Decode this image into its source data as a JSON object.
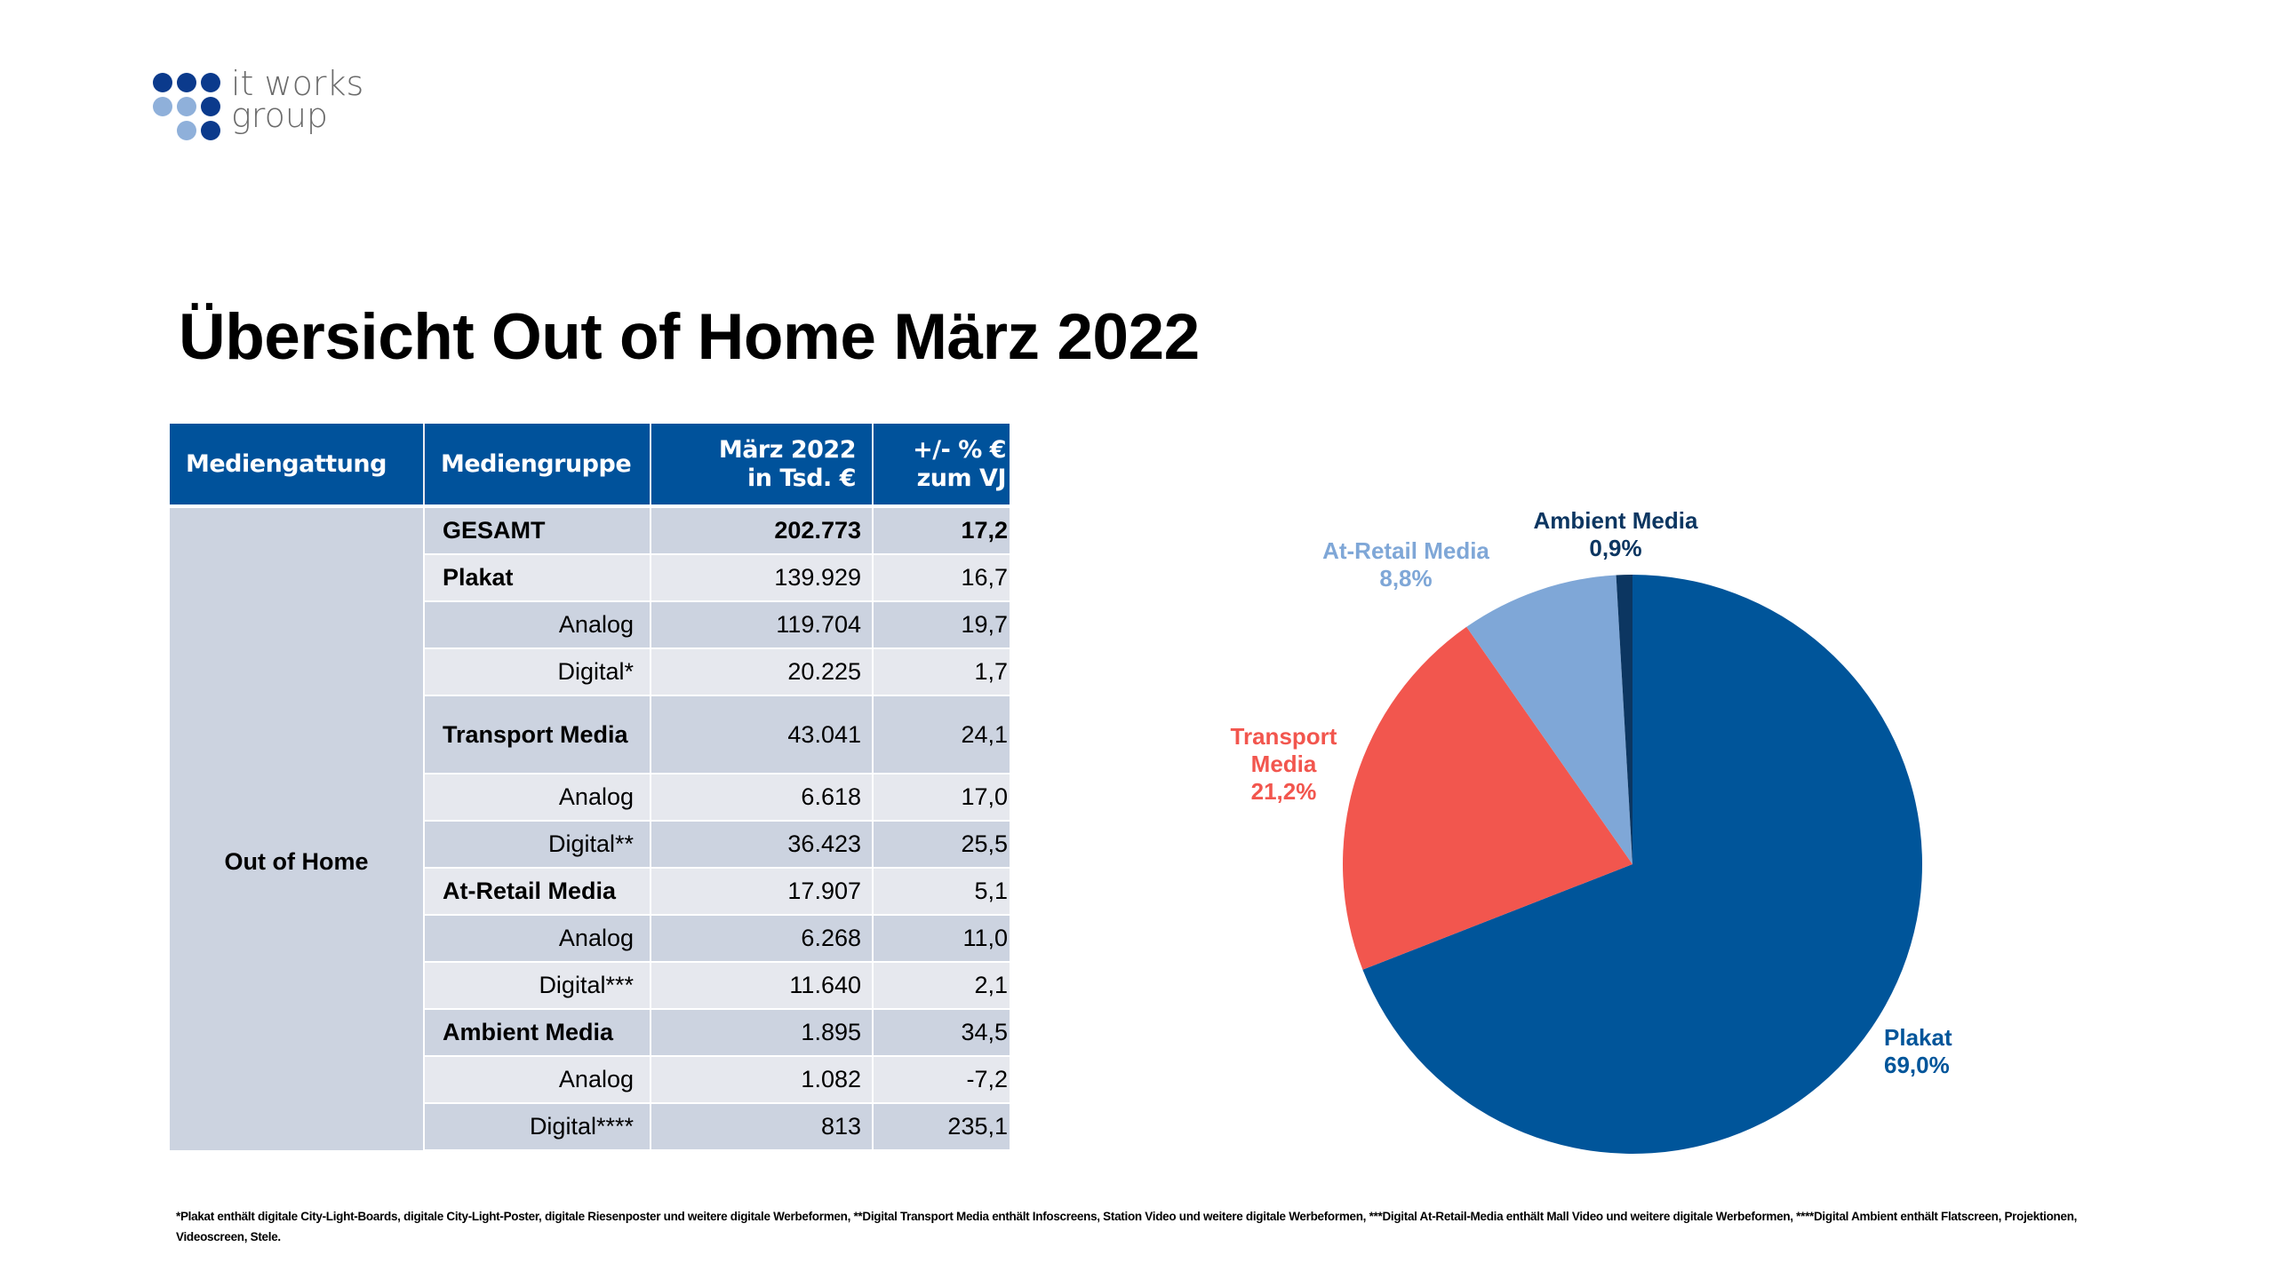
{
  "logo": {
    "line1": "it works",
    "line2": "group"
  },
  "title": "Übersicht Out of Home März 2022",
  "table": {
    "headers": [
      "Mediengattung",
      "Mediengruppe",
      "März 2022",
      "in Tsd. €",
      "+/- % €",
      "zum VJ"
    ],
    "group": "Out of Home",
    "rows": [
      {
        "name": "GESAMT",
        "value": "202.773",
        "change": "17,2"
      },
      {
        "name": "Plakat",
        "value": "139.929",
        "change": "16,7"
      },
      {
        "name": "Analog",
        "value": "119.704",
        "change": "19,7"
      },
      {
        "name": "Digital*",
        "value": "20.225",
        "change": "1,7"
      },
      {
        "name": "Transport Media",
        "value": "43.041",
        "change": "24,1"
      },
      {
        "name": "Analog",
        "value": "6.618",
        "change": "17,0"
      },
      {
        "name": "Digital**",
        "value": "36.423",
        "change": "25,5"
      },
      {
        "name": "At-Retail Media",
        "value": "17.907",
        "change": "5,1"
      },
      {
        "name": "Analog",
        "value": "6.268",
        "change": "11,0"
      },
      {
        "name": "Digital***",
        "value": "11.640",
        "change": "2,1"
      },
      {
        "name": "Ambient Media",
        "value": "1.895",
        "change": "34,5"
      },
      {
        "name": "Analog",
        "value": "1.082",
        "change": "-7,2"
      },
      {
        "name": "Digital****",
        "value": "813",
        "change": "235,1"
      }
    ]
  },
  "chart_data": {
    "type": "pie",
    "title": "",
    "start": "top",
    "direction": "clockwise",
    "slices": [
      {
        "label": "Plakat",
        "value": 69.0,
        "display": "69,0%",
        "color": "#00559A"
      },
      {
        "label": "Transport",
        "label2": "Media",
        "value": 21.2,
        "display": "21,2%",
        "color": "#F2564E"
      },
      {
        "label": "At-Retail Media",
        "value": 8.8,
        "display": "8,8%",
        "color": "#7FA7D7"
      },
      {
        "label": "Ambient Media",
        "value": 0.9,
        "display": "0,9%",
        "color": "#0C3661"
      }
    ]
  },
  "footnote": {
    "line1": "*Plakat enthält digitale City-Light-Boards,  digitale City-Light-Poster,  digitale Riesenposter und weitere digitale Werbeformen, **Digital Transport Media enthält Infoscreens,  Station Video und weitere digitale Werbeformen, ***Digital At-Retail-Media enthält Mall Video und weitere digitale Werbeformen, ****Digital Ambient enthält Flatscreen, Projektionen,",
    "line2": "Videoscreen, Stele."
  }
}
